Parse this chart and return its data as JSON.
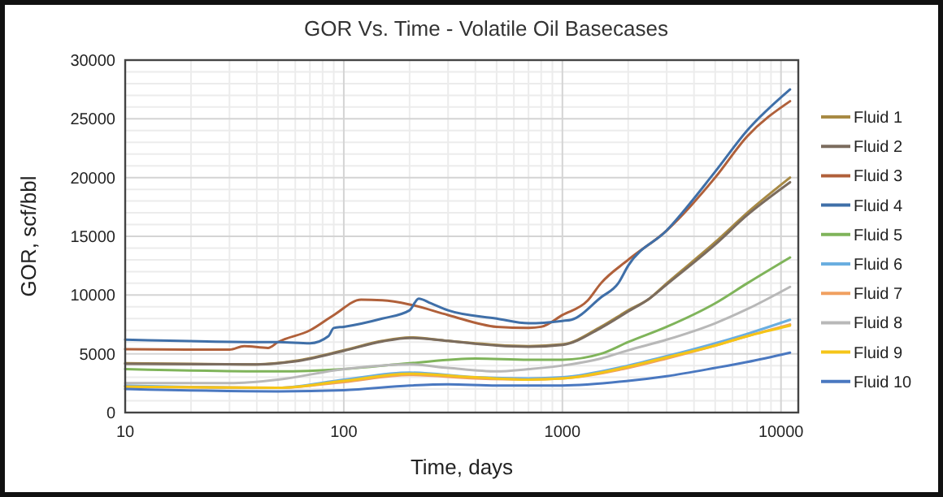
{
  "chart_data": {
    "type": "line",
    "title": "GOR Vs. Time - Volatile Oil Basecases",
    "xlabel": "Time, days",
    "ylabel": "GOR, scf/bbl",
    "log": "x",
    "xlim": [
      10,
      12000
    ],
    "xticks": [
      10,
      100,
      1000,
      10000
    ],
    "ylim": [
      0,
      30000
    ],
    "yticks": [
      0,
      5000,
      10000,
      15000,
      20000,
      25000,
      30000
    ],
    "grid": true,
    "legend": "right",
    "line_style": "solid",
    "marker": "none",
    "series": [
      {
        "name": "Fluid 1",
        "color": "#a88a44",
        "x": [
          10,
          40,
          60,
          100,
          150,
          200,
          300,
          400,
          500,
          700,
          1000,
          1500,
          2000,
          2500,
          3000,
          5000,
          7000,
          11000
        ],
        "values": [
          4200,
          4100,
          4400,
          5300,
          6100,
          6400,
          6100,
          5900,
          5750,
          5650,
          5800,
          7300,
          8700,
          9700,
          11000,
          14500,
          17000,
          20000
        ]
      },
      {
        "name": "Fluid 2",
        "color": "#7b6c5e",
        "x": [
          10,
          40,
          60,
          100,
          150,
          200,
          300,
          400,
          500,
          700,
          1000,
          1500,
          2000,
          2500,
          3000,
          5000,
          7000,
          11000
        ],
        "values": [
          4150,
          4100,
          4350,
          5250,
          6050,
          6350,
          6100,
          5850,
          5700,
          5600,
          5750,
          7200,
          8600,
          9700,
          10900,
          14300,
          16800,
          19600
        ]
      },
      {
        "name": "Fluid 3",
        "color": "#b0603a",
        "x": [
          10,
          30,
          35,
          45,
          50,
          70,
          90,
          120,
          150,
          200,
          300,
          500,
          700,
          800,
          1000,
          1300,
          1500,
          2000,
          3000,
          5000,
          7000,
          11000
        ],
        "values": [
          5400,
          5350,
          5650,
          5500,
          6000,
          7000,
          8300,
          9600,
          9550,
          9200,
          8300,
          7300,
          7200,
          7300,
          8300,
          9500,
          11000,
          13000,
          15500,
          20000,
          23500,
          26500
        ]
      },
      {
        "name": "Fluid 4",
        "color": "#3f6fa8",
        "x": [
          10,
          45,
          50,
          70,
          85,
          90,
          100,
          150,
          200,
          220,
          250,
          300,
          500,
          700,
          1000,
          1100,
          1500,
          1800,
          2000,
          3000,
          5000,
          7000,
          11000
        ],
        "values": [
          6200,
          6000,
          6000,
          5900,
          6500,
          7200,
          7300,
          8000,
          8700,
          9700,
          9300,
          8700,
          8000,
          7600,
          7800,
          7900,
          9800,
          11000,
          12500,
          15500,
          20500,
          24000,
          27500
        ]
      },
      {
        "name": "Fluid 5",
        "color": "#7fb45a",
        "x": [
          10,
          50,
          100,
          200,
          400,
          700,
          1000,
          1500,
          2000,
          3000,
          5000,
          7000,
          11000
        ],
        "values": [
          3700,
          3500,
          3700,
          4200,
          4600,
          4500,
          4500,
          5000,
          6000,
          7300,
          9300,
          11000,
          13200
        ]
      },
      {
        "name": "Fluid 6",
        "color": "#6aaee0",
        "x": [
          10,
          50,
          100,
          200,
          400,
          700,
          1000,
          2000,
          3000,
          5000,
          7000,
          11000
        ],
        "values": [
          2300,
          2100,
          2800,
          3400,
          3000,
          2900,
          3000,
          4000,
          4800,
          5900,
          6700,
          7900
        ]
      },
      {
        "name": "Fluid 7",
        "color": "#f0a060",
        "x": [
          10,
          50,
          100,
          200,
          400,
          700,
          1000,
          2000,
          3000,
          5000,
          7000,
          11000
        ],
        "values": [
          2200,
          2100,
          2600,
          3200,
          2900,
          2800,
          2900,
          3800,
          4600,
          5700,
          6500,
          7500
        ]
      },
      {
        "name": "Fluid 8",
        "color": "#b8b8b8",
        "x": [
          10,
          30,
          50,
          100,
          200,
          300,
          500,
          700,
          1000,
          1500,
          2000,
          3000,
          5000,
          7000,
          11000
        ],
        "values": [
          2500,
          2500,
          2800,
          3700,
          4100,
          3800,
          3500,
          3700,
          4000,
          4600,
          5300,
          6200,
          7600,
          8800,
          10700
        ]
      },
      {
        "name": "Fluid 9",
        "color": "#f5c518",
        "x": [
          10,
          50,
          100,
          200,
          400,
          700,
          1000,
          2000,
          3000,
          5000,
          7000,
          11000
        ],
        "values": [
          2200,
          2100,
          2700,
          3300,
          3000,
          2800,
          2900,
          3900,
          4700,
          5700,
          6500,
          7400
        ]
      },
      {
        "name": "Fluid 10",
        "color": "#4a78c0",
        "x": [
          10,
          50,
          100,
          200,
          300,
          500,
          1000,
          2000,
          3000,
          5000,
          7000,
          11000
        ],
        "values": [
          2000,
          1800,
          1900,
          2300,
          2400,
          2300,
          2300,
          2700,
          3100,
          3800,
          4300,
          5100
        ]
      }
    ]
  }
}
